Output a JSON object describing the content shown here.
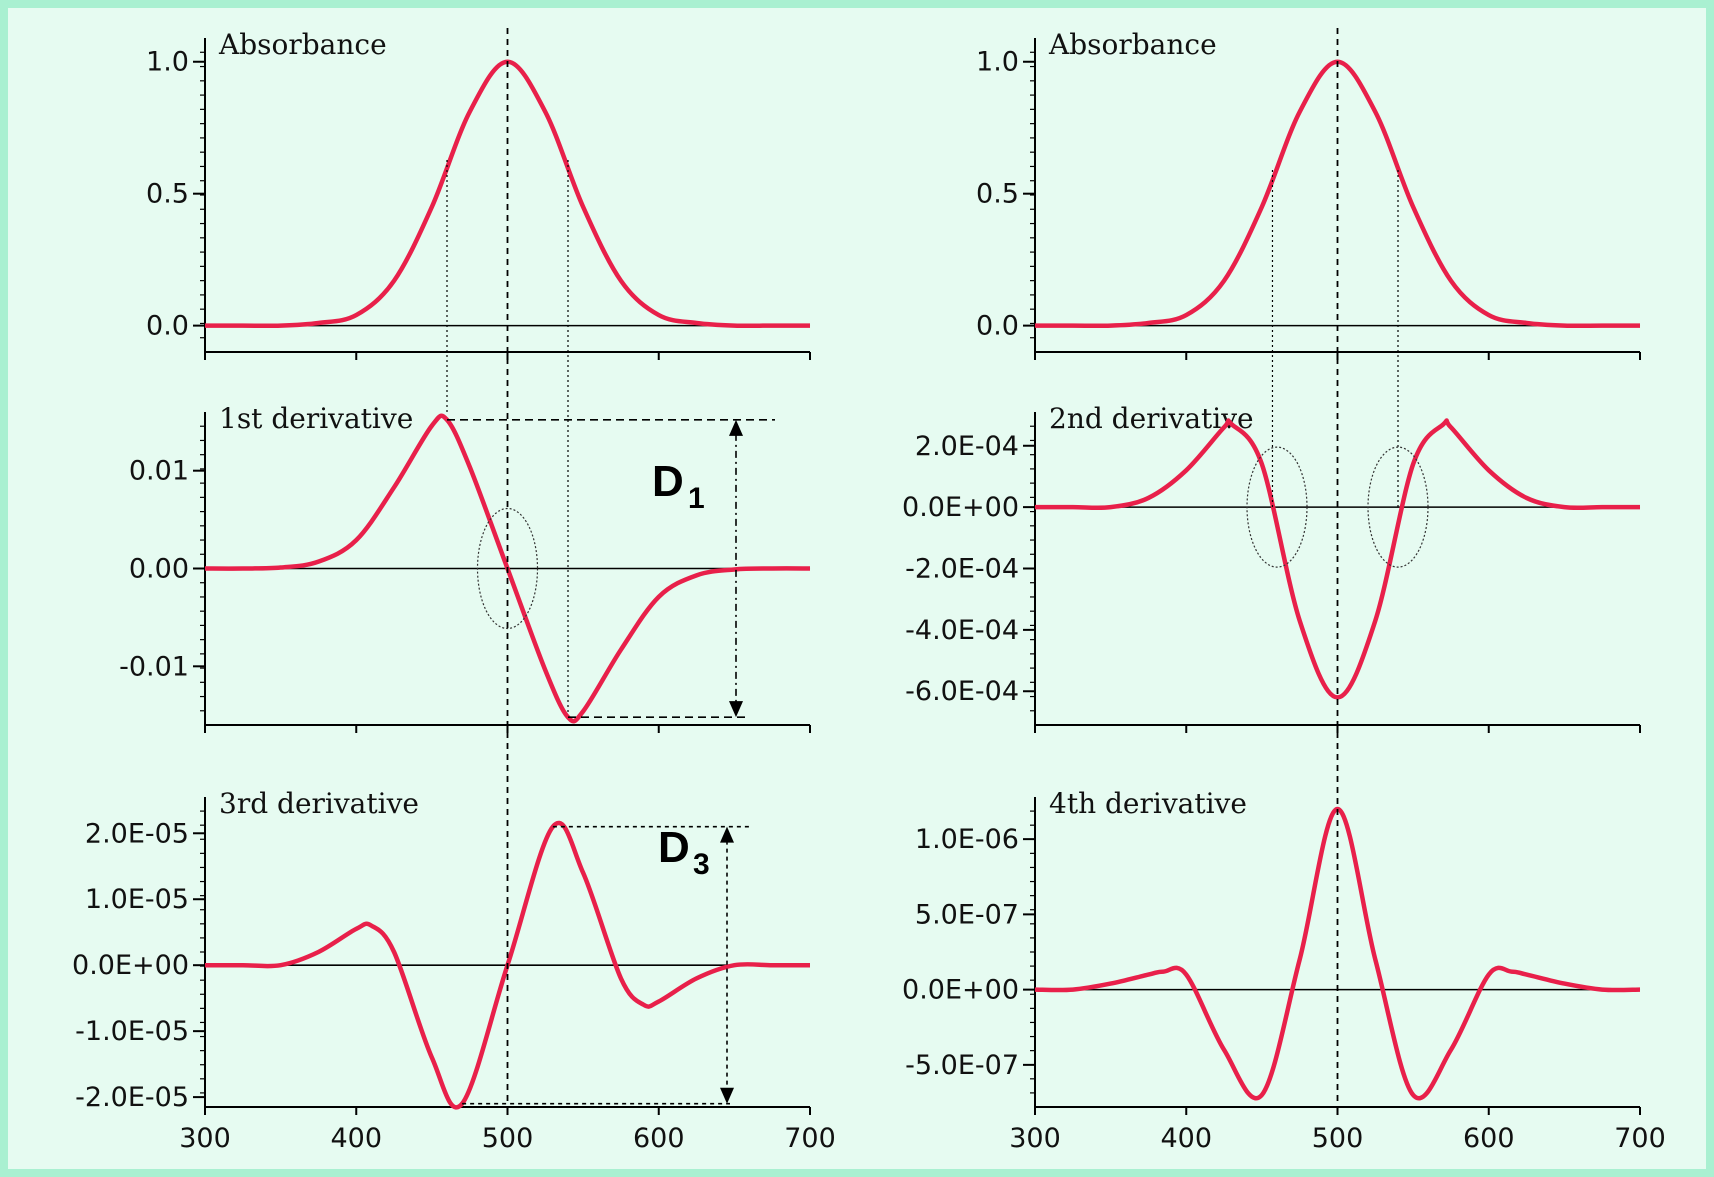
{
  "chart_data": [
    {
      "type": "line",
      "title": "Absorbance",
      "x": [
        300,
        325,
        350,
        375,
        400,
        425,
        450,
        475,
        500,
        525,
        550,
        575,
        600,
        625,
        650,
        675,
        700
      ],
      "series": [
        {
          "values": [
            0.0,
            0.0,
            0.0,
            0.01,
            0.04,
            0.17,
            0.45,
            0.81,
            1.0,
            0.81,
            0.45,
            0.17,
            0.04,
            0.01,
            0.0,
            0.0,
            0.0
          ]
        }
      ],
      "yticks": [
        "0.0",
        "0.5",
        "1.0"
      ],
      "xlim": [
        300,
        700
      ],
      "ylim": [
        -0.1,
        1.09
      ],
      "center": 500
    },
    {
      "type": "line",
      "title": "1st derivative",
      "x": [
        300,
        325,
        350,
        375,
        400,
        425,
        450,
        460,
        475,
        500,
        525,
        540,
        550,
        575,
        600,
        625,
        650,
        675,
        700
      ],
      "series": [
        {
          "values": [
            0.0,
            0.0,
            0.0001,
            0.0007,
            0.0029,
            0.0083,
            0.0146,
            0.0152,
            0.0104,
            0.0,
            -0.0104,
            -0.0152,
            -0.0146,
            -0.0083,
            -0.0029,
            -0.0007,
            -0.0001,
            0.0,
            0.0
          ]
        }
      ],
      "yticks": [
        "0.01",
        "0.00",
        "-0.01"
      ],
      "xlim": [
        300,
        700
      ],
      "ylim": [
        -0.016,
        0.016
      ],
      "center": 500
    },
    {
      "type": "line",
      "title": "2nd derivative",
      "x": [
        300,
        325,
        350,
        375,
        400,
        425,
        430,
        450,
        475,
        500,
        525,
        550,
        570,
        575,
        600,
        625,
        650,
        675,
        700
      ],
      "series": [
        {
          "values": [
            0.0,
            0.0,
            0.0,
            3e-05,
            0.00012,
            0.00026,
            0.00027,
            0.00014,
            -0.00037,
            -0.00062,
            -0.00037,
            0.00014,
            0.00027,
            0.00026,
            0.00012,
            3e-05,
            0.0,
            0.0,
            0.0
          ]
        }
      ],
      "yticks": [
        "2.0E-04",
        "0.0E+00",
        "-2.0E-04",
        "-4.0E-04",
        "-6.0E-04"
      ],
      "xlim": [
        300,
        700
      ],
      "ylim": [
        -0.00071,
        0.00031
      ],
      "center": 500
    },
    {
      "type": "line",
      "title": "3rd derivative",
      "x": [
        300,
        325,
        350,
        375,
        400,
        410,
        425,
        450,
        470,
        500,
        530,
        550,
        575,
        590,
        600,
        625,
        650,
        675,
        700
      ],
      "series": [
        {
          "values": [
            0.0,
            0.0,
            0.0,
            2e-06,
            5.5e-06,
            6e-06,
            2e-06,
            -1.4e-05,
            -2.1e-05,
            0.0,
            2.1e-05,
            1.4e-05,
            -2e-06,
            -6e-06,
            -5.5e-06,
            -2e-06,
            0.0,
            0.0,
            0.0
          ]
        }
      ],
      "yticks": [
        "2.0E-05",
        "1.0E-05",
        "0.0E+00",
        "-1.0E-05",
        "-2.0E-05"
      ],
      "xlim": [
        300,
        700
      ],
      "ylim": [
        -2.15e-05,
        2.55e-05
      ],
      "center": 500
    },
    {
      "type": "line",
      "title": "4th derivative",
      "x": [
        300,
        325,
        350,
        375,
        385,
        400,
        425,
        450,
        475,
        500,
        525,
        550,
        575,
        600,
        615,
        625,
        650,
        675,
        700
      ],
      "series": [
        {
          "values": [
            0.0,
            0.0,
            4e-08,
            1e-07,
            1.2e-07,
            1e-07,
            -4e-07,
            -7e-07,
            2e-07,
            1.2e-06,
            2e-07,
            -7e-07,
            -4e-07,
            1e-07,
            1.2e-07,
            1e-07,
            4e-08,
            0.0,
            0.0
          ]
        }
      ],
      "yticks": [
        "1.0E-06",
        "5.0E-07",
        "0.0E+00",
        "-5.0E-07"
      ],
      "xlim": [
        300,
        700
      ],
      "ylim": [
        -7.8e-07,
        1.28e-06
      ],
      "center": 500
    }
  ],
  "x_tick_labels": [
    "300",
    "400",
    "500",
    "600",
    "700"
  ],
  "annotations": {
    "d1": {
      "main": "D",
      "sub": "1"
    },
    "d3": {
      "main": "D",
      "sub": "3"
    }
  },
  "colors": {
    "curve": "#e8204a",
    "background": "#e6fbf1",
    "border": "#a9f0d1"
  }
}
